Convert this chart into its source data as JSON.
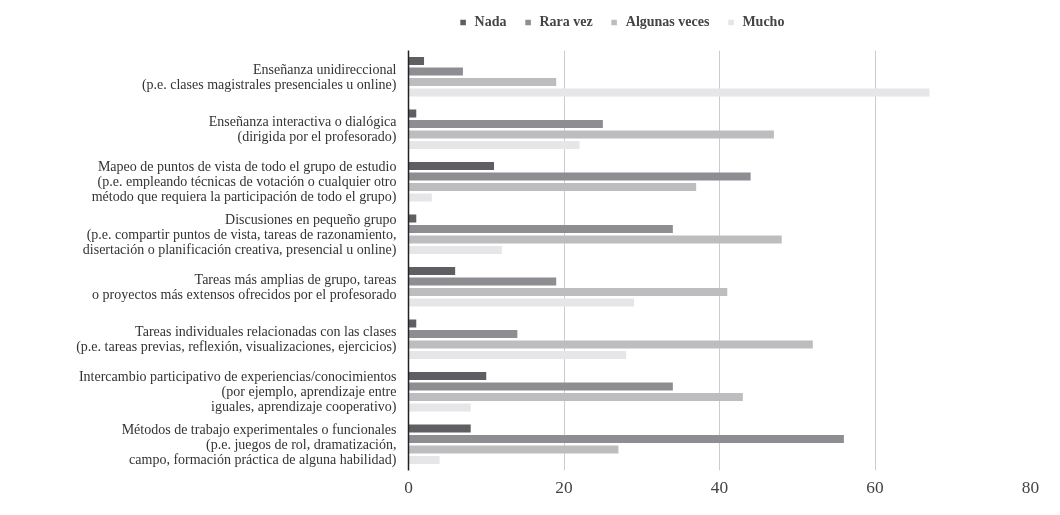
{
  "chart_data": {
    "type": "bar",
    "orientation": "horizontal",
    "categories": [
      "Enseñanza unidireccional\n(p.e. clases magistrales presenciales u online)",
      "Enseñanza interactiva o dialógica\n(dirigida por el profesorado)",
      "Mapeo de puntos de vista de todo el grupo de estudio\n(p.e. empleando técnicas de votación o cualquier otro\nmétodo que requiera la participación de todo el grupo)",
      "Discusiones en pequeño grupo\n(p.e. compartir puntos de vista, tareas de razonamiento,\ndisertación o planificación creativa, presencial u online)",
      "Tareas más amplias de grupo, tareas\no proyectos más extensos ofrecidos por el profesorado",
      "Tareas individuales relacionadas con las clases\n(p.e. tareas previas, reflexión, visualizaciones, ejercicios)",
      "Intercambio participativo de experiencias/conocimientos\n(por ejemplo, aprendizaje entre\niguales, aprendizaje cooperativo)",
      "Métodos de trabajo experimentales o funcionales\n(p.e. juegos de rol, dramatización,\ncampo, formación práctica de alguna habilidad)"
    ],
    "series": [
      {
        "name": "Nada",
        "color": "#5f5f63",
        "values": [
          2,
          1,
          11,
          1,
          6,
          1,
          10,
          8
        ]
      },
      {
        "name": "Rara vez",
        "color": "#8e8e92",
        "values": [
          7,
          25,
          44,
          34,
          19,
          14,
          34,
          56
        ]
      },
      {
        "name": "Algunas veces",
        "color": "#bdbdc0",
        "values": [
          19,
          47,
          37,
          48,
          41,
          52,
          43,
          27
        ]
      },
      {
        "name": "Mucho",
        "color": "#e6e6e8",
        "values": [
          67,
          22,
          3,
          12,
          29,
          28,
          8,
          4
        ]
      }
    ],
    "xlim": [
      0,
      80
    ],
    "xticks": [
      0,
      20,
      40,
      60,
      80
    ],
    "grid": "x",
    "legend": "top"
  }
}
